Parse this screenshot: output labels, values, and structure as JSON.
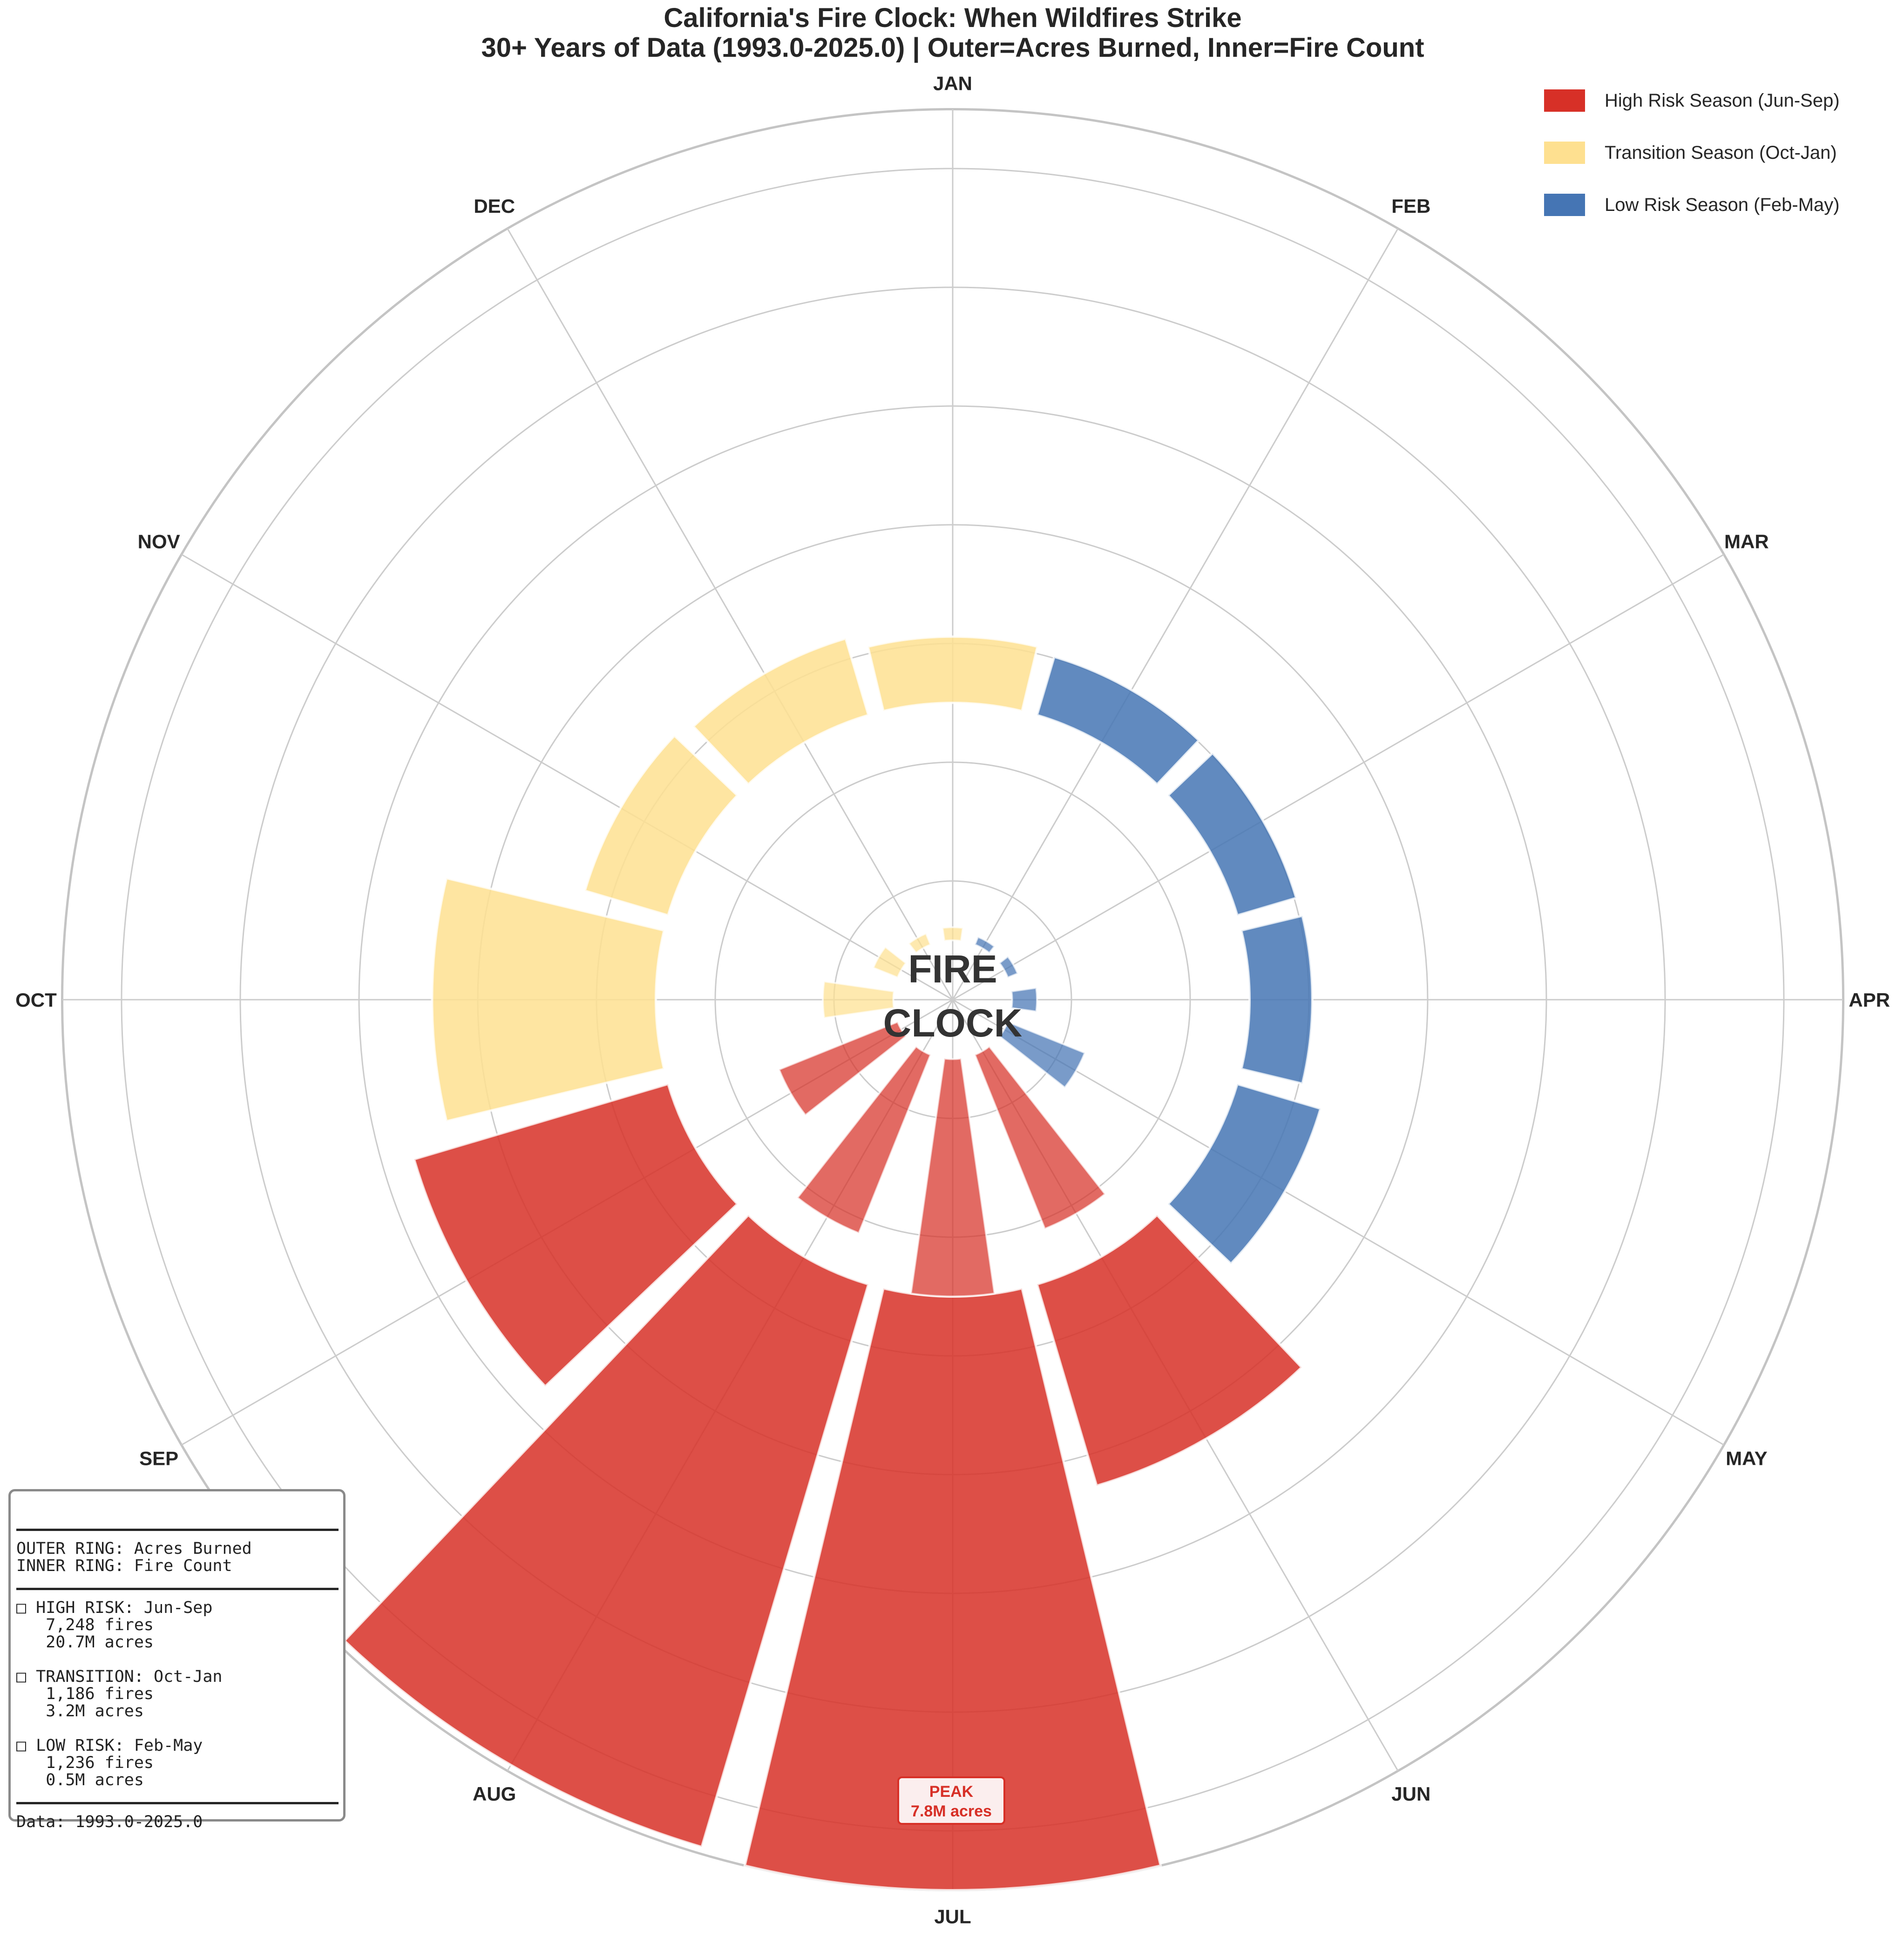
{
  "title": {
    "line1": "California's Fire Clock: When Wildfires Strike",
    "line2": "30+ Years of Data (1993.0-2025.0) | Outer=Acres Burned, Inner=Fire Count"
  },
  "legend": [
    {
      "label": "High Risk Season (Jun-Sep)",
      "color": "#d73027"
    },
    {
      "label": "Transition Season (Oct-Jan)",
      "color": "#fee090"
    },
    {
      "label": "Low Risk Season (Feb-May)",
      "color": "#4575b4"
    }
  ],
  "center_text": {
    "line1": "FIRE",
    "line2": "CLOCK"
  },
  "peak_annotation": {
    "line1": "PEAK",
    "line2": "7.8M acres"
  },
  "info_box": {
    "line_outer": "OUTER RING: Acres Burned",
    "line_inner": "INNER RING: Fire Count",
    "high_title": "□ HIGH RISK: Jun-Sep",
    "high_fires": "   7,248 fires",
    "high_acres": "   20.7M acres",
    "trans_title": "□ TRANSITION: Oct-Jan",
    "trans_fires": "   1,186 fires",
    "trans_acres": "   3.2M acres",
    "low_title": "□ LOW RISK: Feb-May",
    "low_fires": "   1,236 fires",
    "low_acres": "   0.5M acres",
    "data_range": "Data: 1993.0-2025.0"
  },
  "chart_data": {
    "type": "polar-bar",
    "title": "California's Fire Clock: When Wildfires Strike",
    "categories": [
      "JAN",
      "FEB",
      "MAR",
      "APR",
      "MAY",
      "JUN",
      "JUL",
      "AUG",
      "SEP",
      "OCT",
      "NOV",
      "DEC"
    ],
    "season": [
      "transition",
      "low",
      "low",
      "low",
      "low",
      "high",
      "high",
      "high",
      "high",
      "transition",
      "transition",
      "transition"
    ],
    "season_colors": {
      "high": "#d73027",
      "transition": "#fee090",
      "low": "#4575b4"
    },
    "series": [
      {
        "name": "Acres Burned",
        "ring": "outer",
        "unit": "million acres",
        "values": [
          0.1,
          0.02,
          0.03,
          0.05,
          0.4,
          2.2,
          7.8,
          7.7,
          3.0,
          2.4,
          0.4,
          0.3
        ]
      },
      {
        "name": "Fire Count",
        "ring": "inner",
        "unit": "fires",
        "values": [
          128,
          81,
          104,
          243,
          808,
          1825,
          2310,
          1870,
          1243,
          686,
          255,
          117
        ]
      }
    ],
    "direction": "clockwise",
    "start": "top",
    "grid": true
  }
}
